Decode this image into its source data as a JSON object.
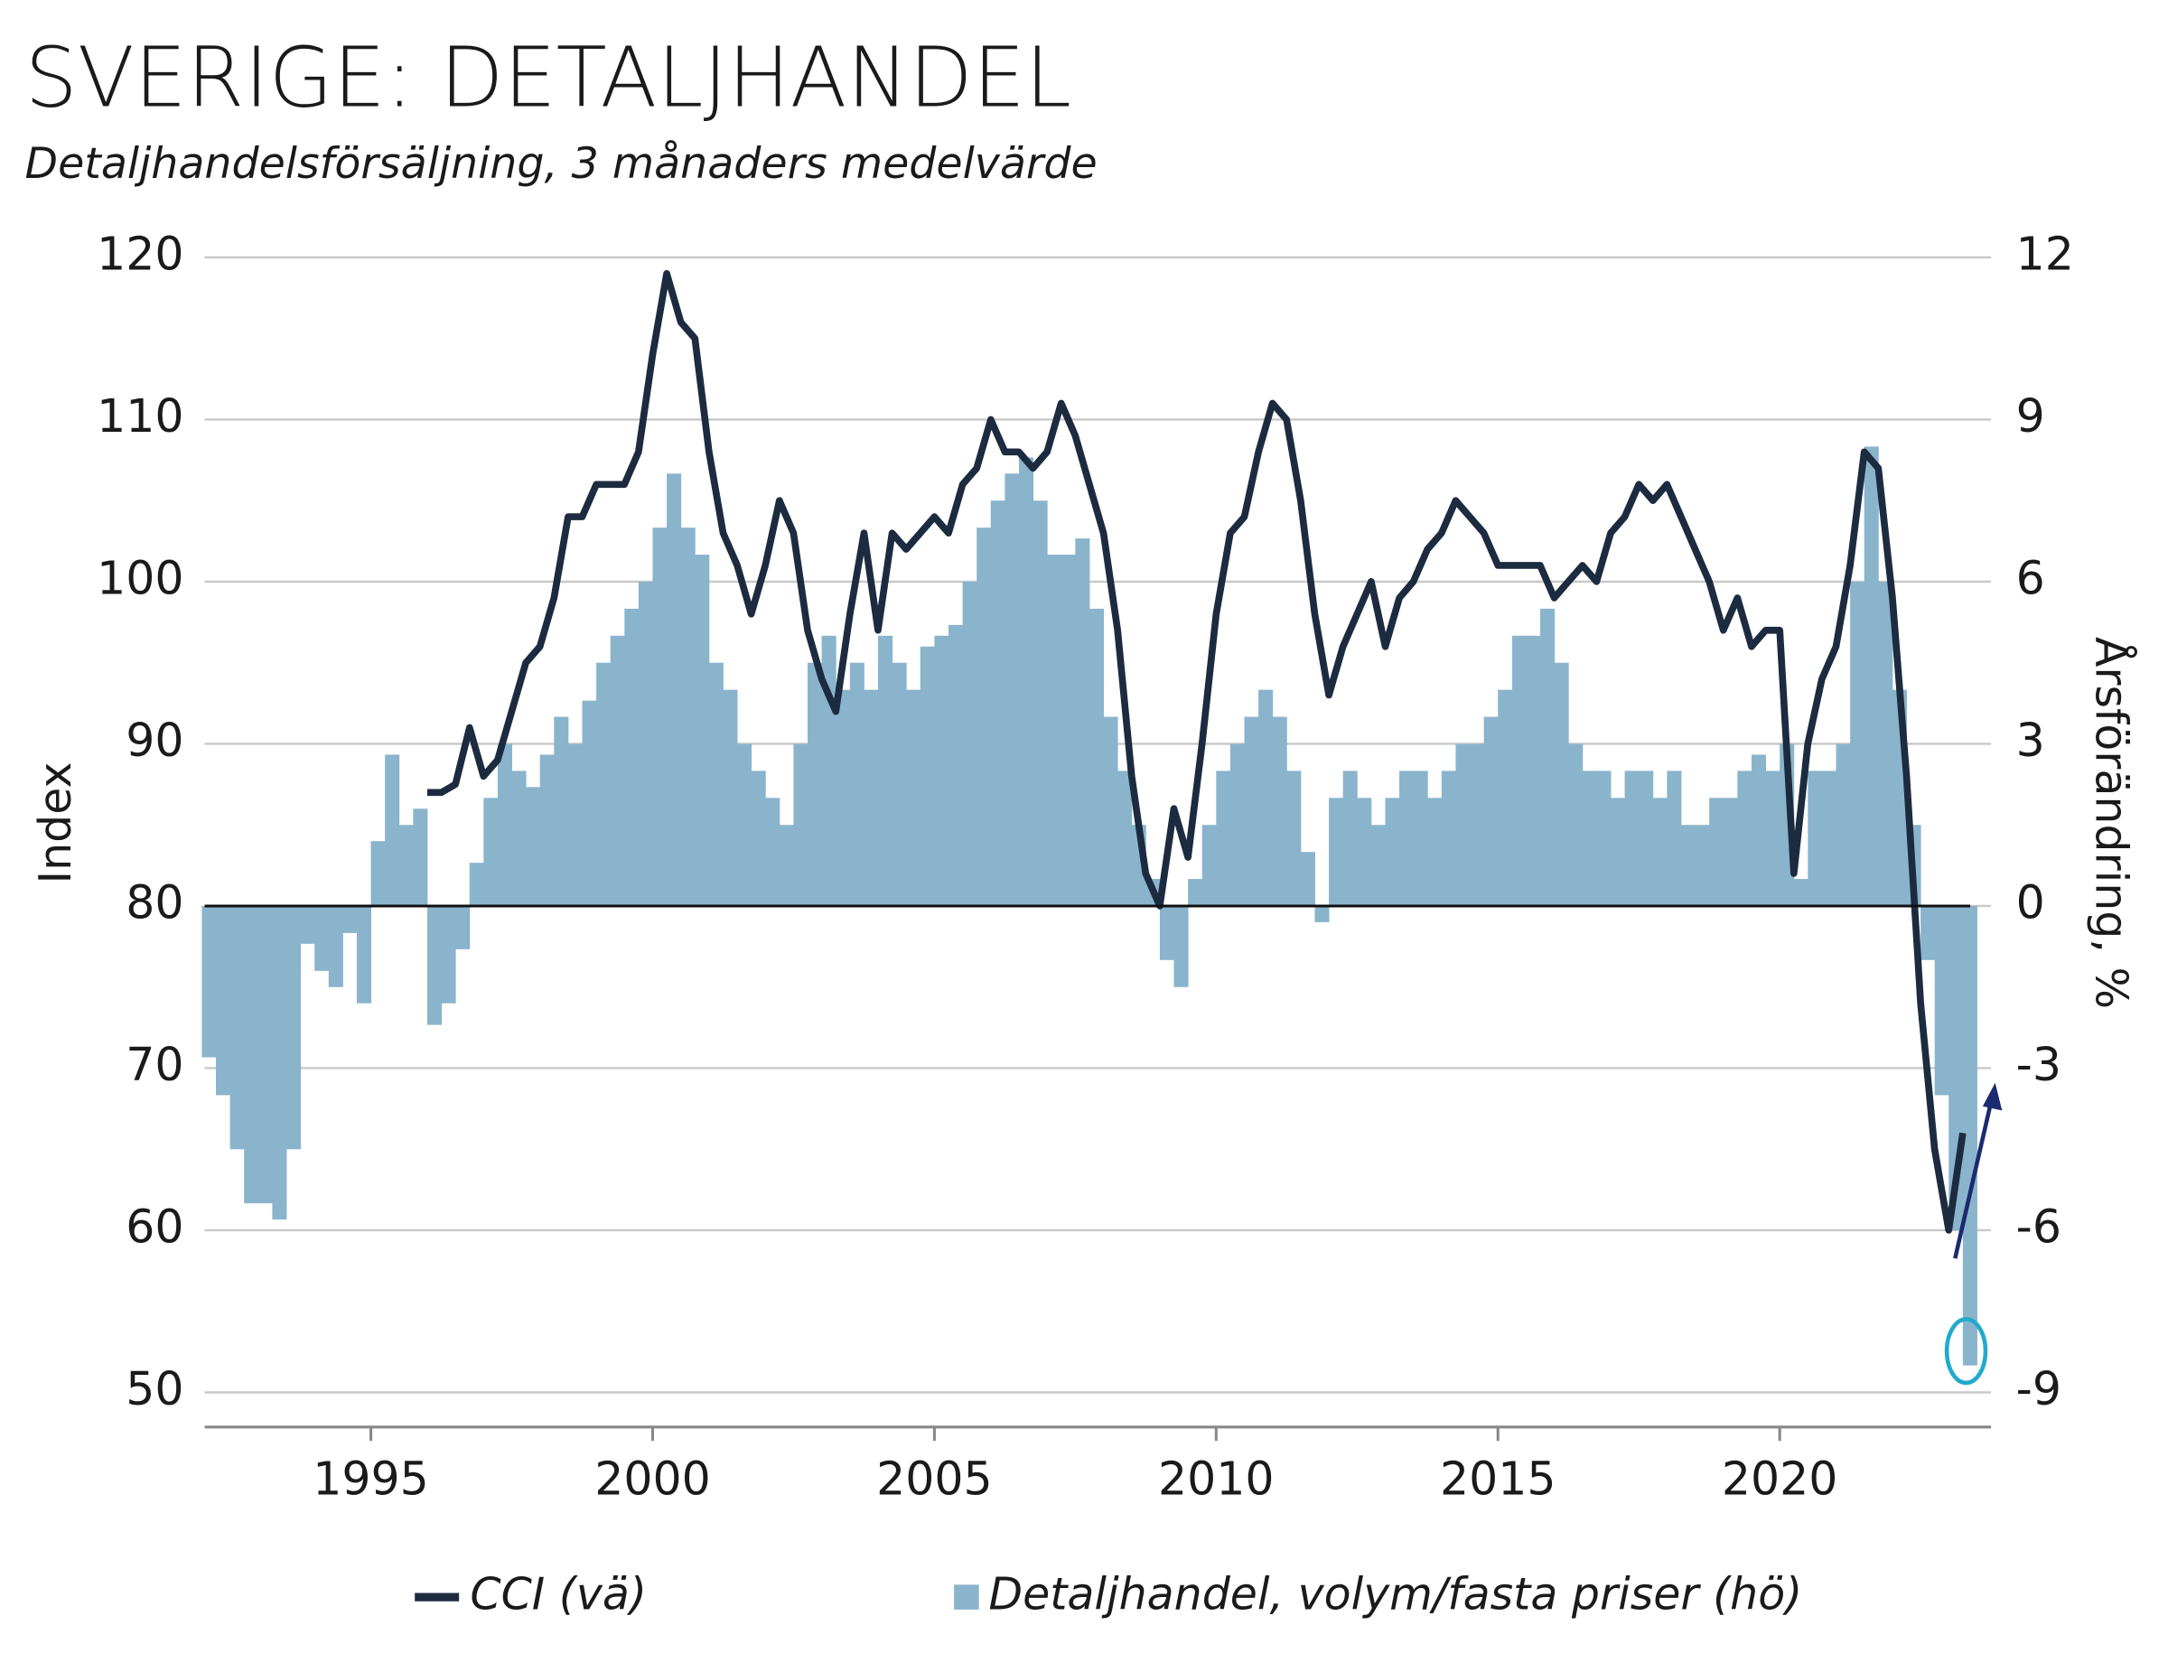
{
  "chart_data": {
    "type": "bar+line",
    "title": "SVERIGE: DETALJHANDEL",
    "subtitle": "Detaljhandelsförsäljning, 3 månaders medelvärde",
    "ylabel": "Index",
    "y2label": "Årsförändring, %",
    "xlim": [
      1992.05,
      2023.75
    ],
    "xticks": [
      1995,
      2000,
      2005,
      2010,
      2015,
      2020
    ],
    "ylim": [
      47.86,
      120
    ],
    "yticks": [
      120,
      110,
      100,
      90,
      80,
      70,
      60,
      50
    ],
    "y2lim": [
      -9.64,
      12
    ],
    "y2ticks": [
      12,
      9,
      6,
      3,
      0,
      -3,
      -6,
      -9
    ],
    "grid": true,
    "legend": "bottom",
    "x": [
      1992.0,
      1992.25,
      1992.5,
      1992.75,
      1993.0,
      1993.25,
      1993.5,
      1993.75,
      1994.0,
      1994.25,
      1994.5,
      1994.75,
      1995.0,
      1995.25,
      1995.5,
      1995.75,
      1996.0,
      1996.25,
      1996.5,
      1996.75,
      1997.0,
      1997.25,
      1997.5,
      1997.75,
      1998.0,
      1998.25,
      1998.5,
      1998.75,
      1999.0,
      1999.25,
      1999.5,
      1999.75,
      2000.0,
      2000.25,
      2000.5,
      2000.75,
      2001.0,
      2001.25,
      2001.5,
      2001.75,
      2002.0,
      2002.25,
      2002.5,
      2002.75,
      2003.0,
      2003.25,
      2003.5,
      2003.75,
      2004.0,
      2004.25,
      2004.5,
      2004.75,
      2005.0,
      2005.25,
      2005.5,
      2005.75,
      2006.0,
      2006.25,
      2006.5,
      2006.75,
      2007.0,
      2007.25,
      2007.5,
      2007.75,
      2008.0,
      2008.25,
      2008.5,
      2008.75,
      2009.0,
      2009.25,
      2009.5,
      2009.75,
      2010.0,
      2010.25,
      2010.5,
      2010.75,
      2011.0,
      2011.25,
      2011.5,
      2011.75,
      2012.0,
      2012.25,
      2012.5,
      2012.75,
      2013.0,
      2013.25,
      2013.5,
      2013.75,
      2014.0,
      2014.25,
      2014.5,
      2014.75,
      2015.0,
      2015.25,
      2015.5,
      2015.75,
      2016.0,
      2016.25,
      2016.5,
      2016.75,
      2017.0,
      2017.25,
      2017.5,
      2017.75,
      2018.0,
      2018.25,
      2018.5,
      2018.75,
      2019.0,
      2019.25,
      2019.5,
      2019.75,
      2020.0,
      2020.25,
      2020.5,
      2020.75,
      2021.0,
      2021.25,
      2021.5,
      2021.75,
      2022.0,
      2022.25,
      2022.5,
      2022.75,
      2023.0,
      2023.25
    ],
    "series": [
      {
        "name": "CCI (vä)",
        "color": "#1c2b3f",
        "axis": "y",
        "values": [
          null,
          null,
          null,
          null,
          null,
          null,
          null,
          null,
          null,
          null,
          null,
          null,
          null,
          null,
          null,
          null,
          87,
          87,
          87.5,
          91,
          88,
          89,
          92,
          95,
          96,
          99,
          104,
          104,
          106,
          106,
          106,
          108,
          114,
          119,
          116,
          115,
          108,
          103,
          101,
          98,
          101,
          105,
          103,
          97,
          94,
          92,
          98,
          103,
          97,
          103,
          102,
          103,
          104,
          103,
          106,
          107,
          110,
          108,
          108,
          107,
          108,
          111,
          109,
          106,
          103,
          97,
          88,
          82,
          80,
          86,
          83,
          90,
          98,
          103,
          104,
          108,
          111,
          110,
          105,
          98,
          93,
          96,
          98,
          100,
          96,
          99,
          100,
          102,
          103,
          105,
          104,
          103,
          101,
          101,
          101,
          101,
          99,
          100,
          101,
          100,
          103,
          104,
          106,
          105,
          106,
          104,
          102,
          100,
          97,
          99,
          96,
          97,
          97,
          82,
          90,
          94,
          96,
          101,
          108,
          107,
          99,
          88,
          74,
          65,
          60,
          66
        ]
      },
      {
        "name": "Detaljhandel, volym/fasta priser (hö)",
        "color": "#8ab4cc",
        "axis": "y2",
        "values": [
          -2.8,
          -3.5,
          -4.5,
          -5.5,
          -5.5,
          -5.8,
          -4.5,
          -0.7,
          -1.2,
          -1.5,
          -0.5,
          -1.8,
          1.2,
          2.8,
          1.5,
          1.8,
          -2.2,
          -1.8,
          -0.8,
          0.8,
          2.0,
          3.0,
          2.5,
          2.2,
          2.8,
          3.5,
          3.0,
          3.8,
          4.5,
          5.0,
          5.5,
          6.0,
          7.0,
          8.0,
          7.0,
          6.5,
          4.5,
          4.0,
          3.0,
          2.5,
          2.0,
          1.5,
          3.0,
          4.5,
          5.0,
          4.0,
          4.5,
          4.0,
          5.0,
          4.5,
          4.0,
          4.8,
          5.0,
          5.2,
          6.0,
          7.0,
          7.5,
          8.0,
          8.3,
          7.5,
          6.5,
          6.5,
          6.8,
          5.5,
          3.5,
          2.5,
          1.5,
          0.5,
          -1.0,
          -1.5,
          0.5,
          1.5,
          2.5,
          3.0,
          3.5,
          4.0,
          3.5,
          2.5,
          1.0,
          -0.3,
          2.0,
          2.5,
          2.0,
          1.5,
          2.0,
          2.5,
          2.5,
          2.0,
          2.5,
          3.0,
          3.0,
          3.5,
          4.0,
          5.0,
          5.0,
          5.5,
          4.5,
          3.0,
          2.5,
          2.5,
          2.0,
          2.5,
          2.5,
          2.0,
          2.5,
          1.5,
          1.5,
          2.0,
          2.0,
          2.5,
          2.8,
          2.5,
          3.0,
          0.5,
          2.5,
          2.5,
          3.0,
          6.0,
          8.5,
          6.0,
          4.0,
          1.5,
          -1.0,
          -3.5,
          -6.0,
          -8.5
        ]
      }
    ]
  }
}
